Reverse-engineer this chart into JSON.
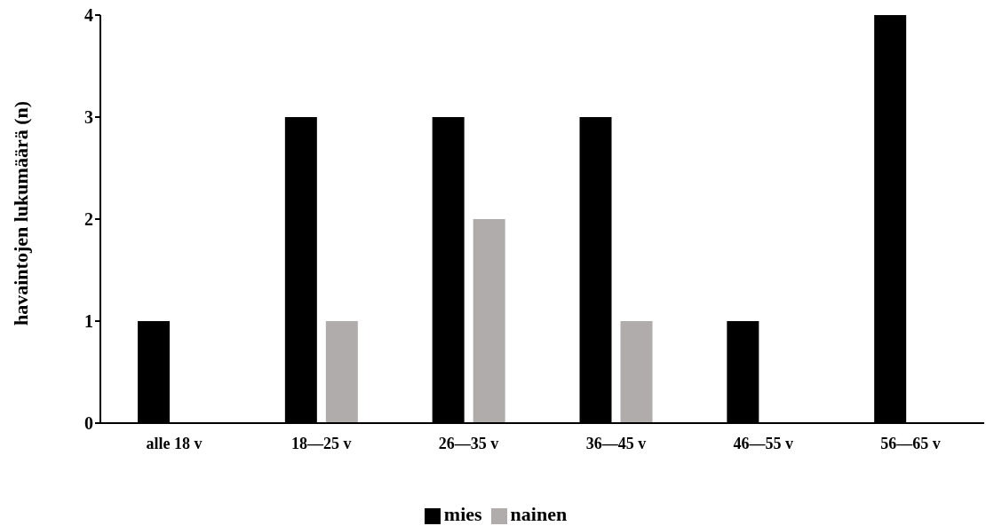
{
  "chart_data": {
    "type": "bar",
    "ylabel": "havaintojen lukumäärä (n)",
    "categories": [
      "alle 18 v",
      "18—25 v",
      "26—35 v",
      "36—45 v",
      "46—55 v",
      "56—65 v"
    ],
    "series": [
      {
        "name": "mies",
        "color": "#000000",
        "values": [
          1,
          3,
          3,
          3,
          1,
          4
        ]
      },
      {
        "name": "nainen",
        "color": "#b0acab",
        "values": [
          0,
          1,
          2,
          1,
          0,
          0
        ]
      }
    ],
    "ylim": [
      0,
      4
    ],
    "yticks": [
      0,
      1,
      2,
      3,
      4
    ],
    "grid": false,
    "legend": "bottom"
  }
}
